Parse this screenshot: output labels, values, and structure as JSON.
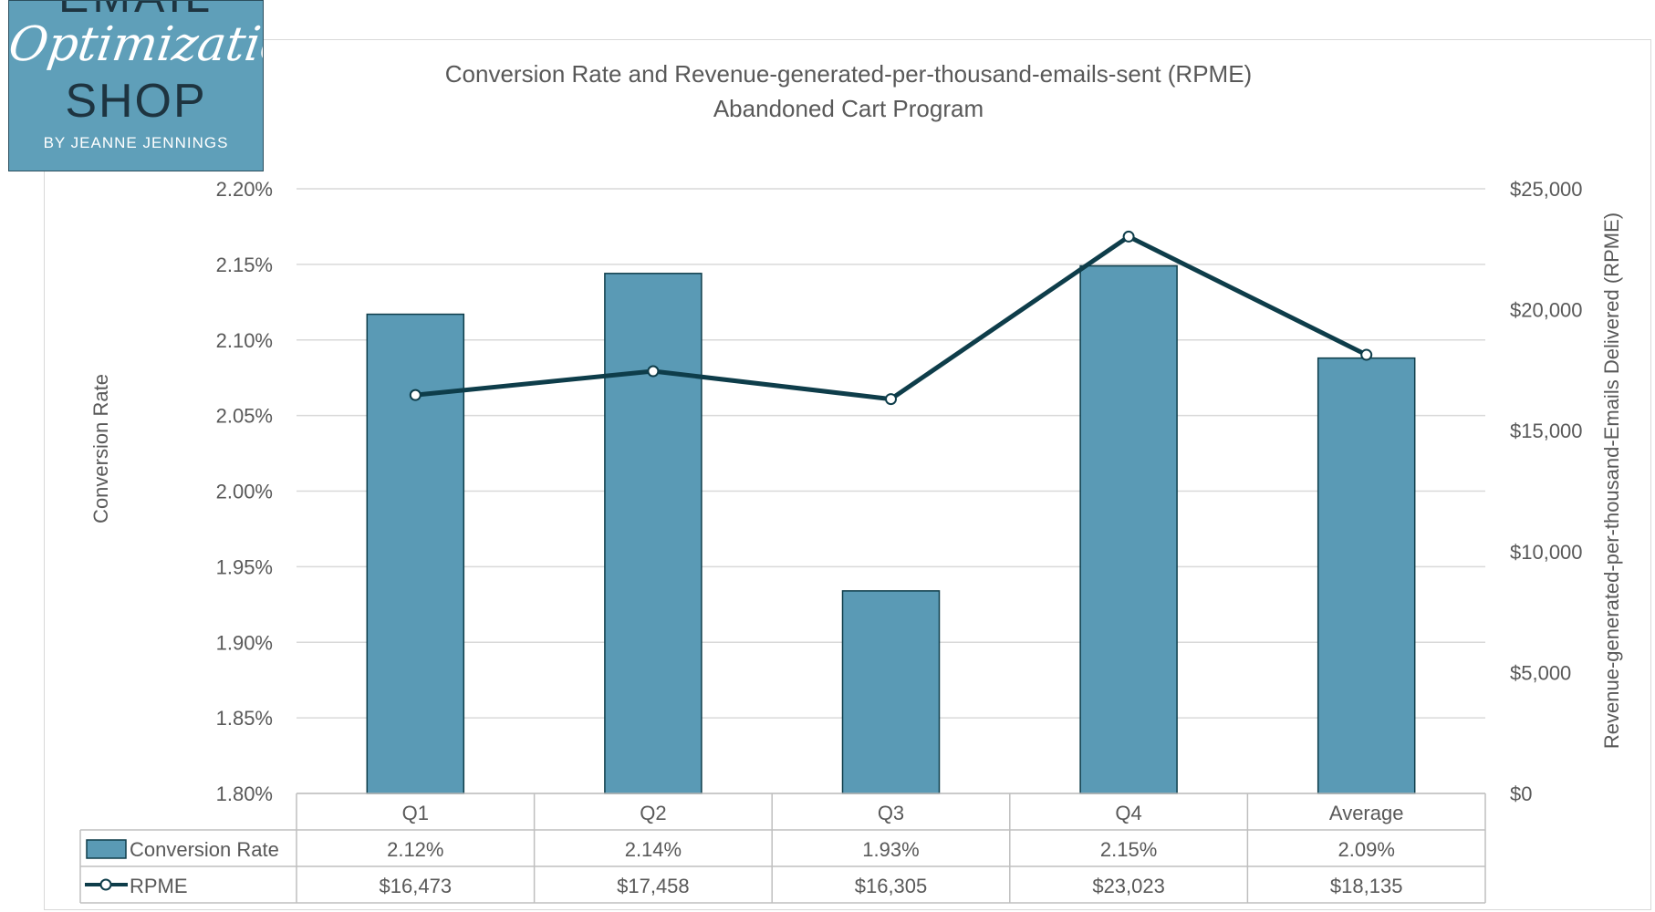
{
  "logo": {
    "line1": "EMAIL",
    "line2": "Optimization",
    "line3": "SHOP",
    "line4": "BY JEANNE JENNINGS"
  },
  "chart_data": {
    "type": "bar",
    "title": "Conversion Rate and Revenue-generated-per-thousand-emails-sent (RPME)",
    "subtitle": "Abandoned Cart Program",
    "categories": [
      "Q1",
      "Q2",
      "Q3",
      "Q4",
      "Average"
    ],
    "series": [
      {
        "name": "Conversion Rate",
        "type": "bar",
        "axis": "left",
        "values": [
          2.117,
          2.144,
          1.934,
          2.149,
          2.088
        ],
        "labels": [
          "2.12%",
          "2.14%",
          "1.93%",
          "2.15%",
          "2.09%"
        ],
        "color": "#5a9ab5"
      },
      {
        "name": "RPME",
        "type": "line",
        "axis": "right",
        "values": [
          16473,
          17458,
          16305,
          23023,
          18135
        ],
        "labels": [
          "$16,473",
          "$17,458",
          "$16,305",
          "$23,023",
          "$18,135"
        ],
        "color": "#0e3d4a"
      }
    ],
    "ylabel": "Conversion Rate",
    "y2label": "Revenue-generated-per-thousand-Emails Delivered (RPME)",
    "ylim": [
      1.8,
      2.2
    ],
    "y2lim": [
      0,
      25000
    ],
    "yticks": [
      "1.80%",
      "1.85%",
      "1.90%",
      "1.95%",
      "2.00%",
      "2.05%",
      "2.10%",
      "2.15%",
      "2.20%"
    ],
    "y2ticks": [
      "$0",
      "$5,000",
      "$10,000",
      "$15,000",
      "$20,000",
      "$25,000"
    ],
    "grid": true,
    "data_table": true
  },
  "colors": {
    "bar": "#5a9ab5",
    "bar_border": "#0e3d4a",
    "line": "#0e3d4a",
    "grid": "#d9d9d9",
    "text": "#595959"
  }
}
